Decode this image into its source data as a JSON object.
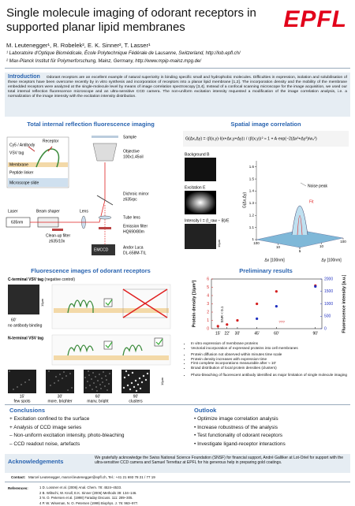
{
  "header": {
    "title": "Single molecule imaging of odorant receptors in supported planar lipid membranes",
    "logo": "EPFL",
    "authors": "M. Leutenegger¹, R. Robelek², E. K. Sinner², T. Lasser¹",
    "affiliations": [
      "¹ Laboratoire d'Optique Biomédicale, École Polytechnique Fédérale de Lausanne, Switzerland, http://lob.epfl.ch/",
      "² Max-Planck Institut für Polymerforschung, Mainz, Germany, http://www.mpip-mainz.mpg.de/"
    ]
  },
  "introduction": {
    "heading": "Introduction",
    "text": "Odorant receptors are an excellent example of natural superiority in binding specific small and hydrophobic molecules. Difficulties in expression, isolation and solubilisation of these receptors have been overcome recently by in vitro synthesis and incorporation of receptors into a planar lipid membrane [1,2]. The incorporation density and the mobility of the membrane embedded receptors were analyzed at the single-molecule level by means of image correlation spectroscopy [3,4]. Instead of a confocal scanning microscope for the image acquisition, we used our total internal reflection fluorescence microscope and an ultra-sensitive CCD camera. The non-uniform excitation intensity requested a modification of the image correlation analysis, i.e. a normalization of the image intensity with the excitation intensity distribution."
  },
  "tirf": {
    "heading": "Total internal reflection fluorescence imaging",
    "labels": [
      "Cy5 / Antibody",
      "VSV tag",
      "Membrane",
      "Peptide linker",
      "Microscope slide",
      "Receptor",
      "Sample",
      "Objective",
      "100x1.45oil",
      "Laser",
      "635nm",
      "Beam shaper",
      "Lens",
      "Dichroic mirror",
      "z635rpc",
      "Clean-up filter",
      "z635/10x",
      "Tube lens",
      "Emission filter",
      "HQ690/80m",
      "EMCCD",
      "Andor Luca",
      "DL-658M-TIL"
    ]
  },
  "correlation": {
    "heading": "Spatial image correlation",
    "formula": "G(Δx,Δy) = ⟨∫I(x,y)·I(x+Δx,y+Δy)⟩ / ⟨∫I(x,y)⟩² ≈ 1 + A·exp(−2(Δx²+Δy²)/w₀²)",
    "labels": [
      "Background B",
      "Excitation E",
      "Intensity I = (I_raw − B)/E",
      "10μm",
      "Noise peak",
      "Fit"
    ],
    "surface_plot": {
      "zlabel": "G(Δx,Δy)",
      "xlabel": "Δx [100nm]",
      "ylabel": "Δy [100nm]",
      "zlim": [
        1,
        1.65
      ],
      "zticks": [
        1,
        1.1,
        1.2,
        1.3,
        1.4,
        1.5,
        1.6
      ],
      "xlim": [
        1,
        100
      ],
      "xticks": [
        1,
        10,
        100
      ],
      "ylim": [
        1,
        100
      ],
      "yticks": [
        1,
        10,
        100
      ]
    }
  },
  "fluorescence": {
    "heading": "Fluorescence images of odorant receptors",
    "c_terminal": {
      "label": "C-terminal VSV tag",
      "note": "(negative control)",
      "scale": "10μm",
      "time": "60'",
      "caption": "no antibody binding"
    },
    "n_terminal": {
      "label": "N-terminal VSV tag",
      "scale": "10μm",
      "images": [
        {
          "time": "15'",
          "caption": "few spots"
        },
        {
          "time": "30'",
          "caption": "more, brighter"
        },
        {
          "time": "60'",
          "caption": "many, bright"
        },
        {
          "time": "90'",
          "caption": "clusters"
        }
      ]
    }
  },
  "results": {
    "heading": "Preliminary results",
    "chart_data": {
      "type": "scatter",
      "ylabel": "Protein density [1/μm²]",
      "y2label": "Fluorescence intensity [a.u.]",
      "x": [
        15,
        22,
        30,
        45,
        60,
        90
      ],
      "xlim": [
        10,
        95
      ],
      "xticks": [
        {
          "value": 15,
          "label": "15'"
        },
        {
          "value": 22,
          "label": "22'"
        },
        {
          "value": 30,
          "label": "30'"
        },
        {
          "value": 45,
          "label": "45'"
        },
        {
          "value": 60,
          "label": "60'"
        },
        {
          "value": 90,
          "label": "90'"
        }
      ],
      "ylim": [
        0,
        6
      ],
      "yticks": [
        0,
        1,
        2,
        3,
        4,
        5,
        6
      ],
      "y2lim": [
        0,
        2000
      ],
      "y2ticks": [
        0,
        500,
        1000,
        1500,
        2000
      ],
      "series": [
        {
          "color": "#d42020",
          "values": [
            0.3,
            0.5,
            1.0,
            3.0,
            4.5,
            5.2
          ]
        },
        {
          "color": "#2030c0",
          "axis": "y2",
          "values": [
            null,
            null,
            null,
            400,
            900,
            1700
          ]
        }
      ],
      "annotations": [
        "SNR < 0.1",
        "???"
      ]
    },
    "bullets": [
      [
        "In vitro expression of membrane proteins",
        "Vectorial incorporation of expressed proteins into cell membranes"
      ],
      [
        "Protein diffusion not observed within minutes time scale",
        "Protein density increases with expression time",
        "First complete incorporations measurable after ≈ 10'",
        "Broad distribution of local protein densities (clusters)"
      ],
      [
        "Photo-bleaching of fluorescent antibody identified as major limitation of single molecule imaging"
      ]
    ]
  },
  "conclusions": {
    "heading": "Conclusions",
    "items": [
      "+ Excitation confined to the surface",
      "+ Analysis of CCD image series",
      "– Non-uniform excitation intensity, photo-bleaching",
      "– CCD readout noise, artefacts"
    ]
  },
  "outlook": {
    "heading": "Outlook",
    "items": [
      "• Optimize image correlation analysis",
      "• Increase robustness of the analysis",
      "• Test functionality of odorant receptors",
      "• Investigate ligand-receptor interactions"
    ]
  },
  "acknowledgements": {
    "heading": "Acknowledgements",
    "text": "We gratefully acknowledge the Swiss National Science Foundation (SNSF) for financial support, André Galliker at Lot-Oriel for support with the ultra-sensitive CCD camera and Samuel Terrettaz at EPFL for his generous help in preparing gold coatings."
  },
  "contact": {
    "label": "Contact:",
    "text": "Marcel Leutenegger, marcel.leutenegger@epfl.ch, Tel.: +41 21 693 78 21 / 77 19"
  },
  "references": {
    "label": "References:",
    "items": [
      "1  D. Lossner et al. (2006) Anal. Chem. 78: 4524–4533.",
      "2  B. Wiltschi, W. Knoll, E.K. Sinner (2006) Methods 39: 134–146.",
      "3  N. O. Petersen et al. (1998) Faraday Discuss. 111: 289–305.",
      "4  P. W. Wiseman, N. O. Petersen (1999) Biophys. J. 76: 963–977."
    ]
  }
}
